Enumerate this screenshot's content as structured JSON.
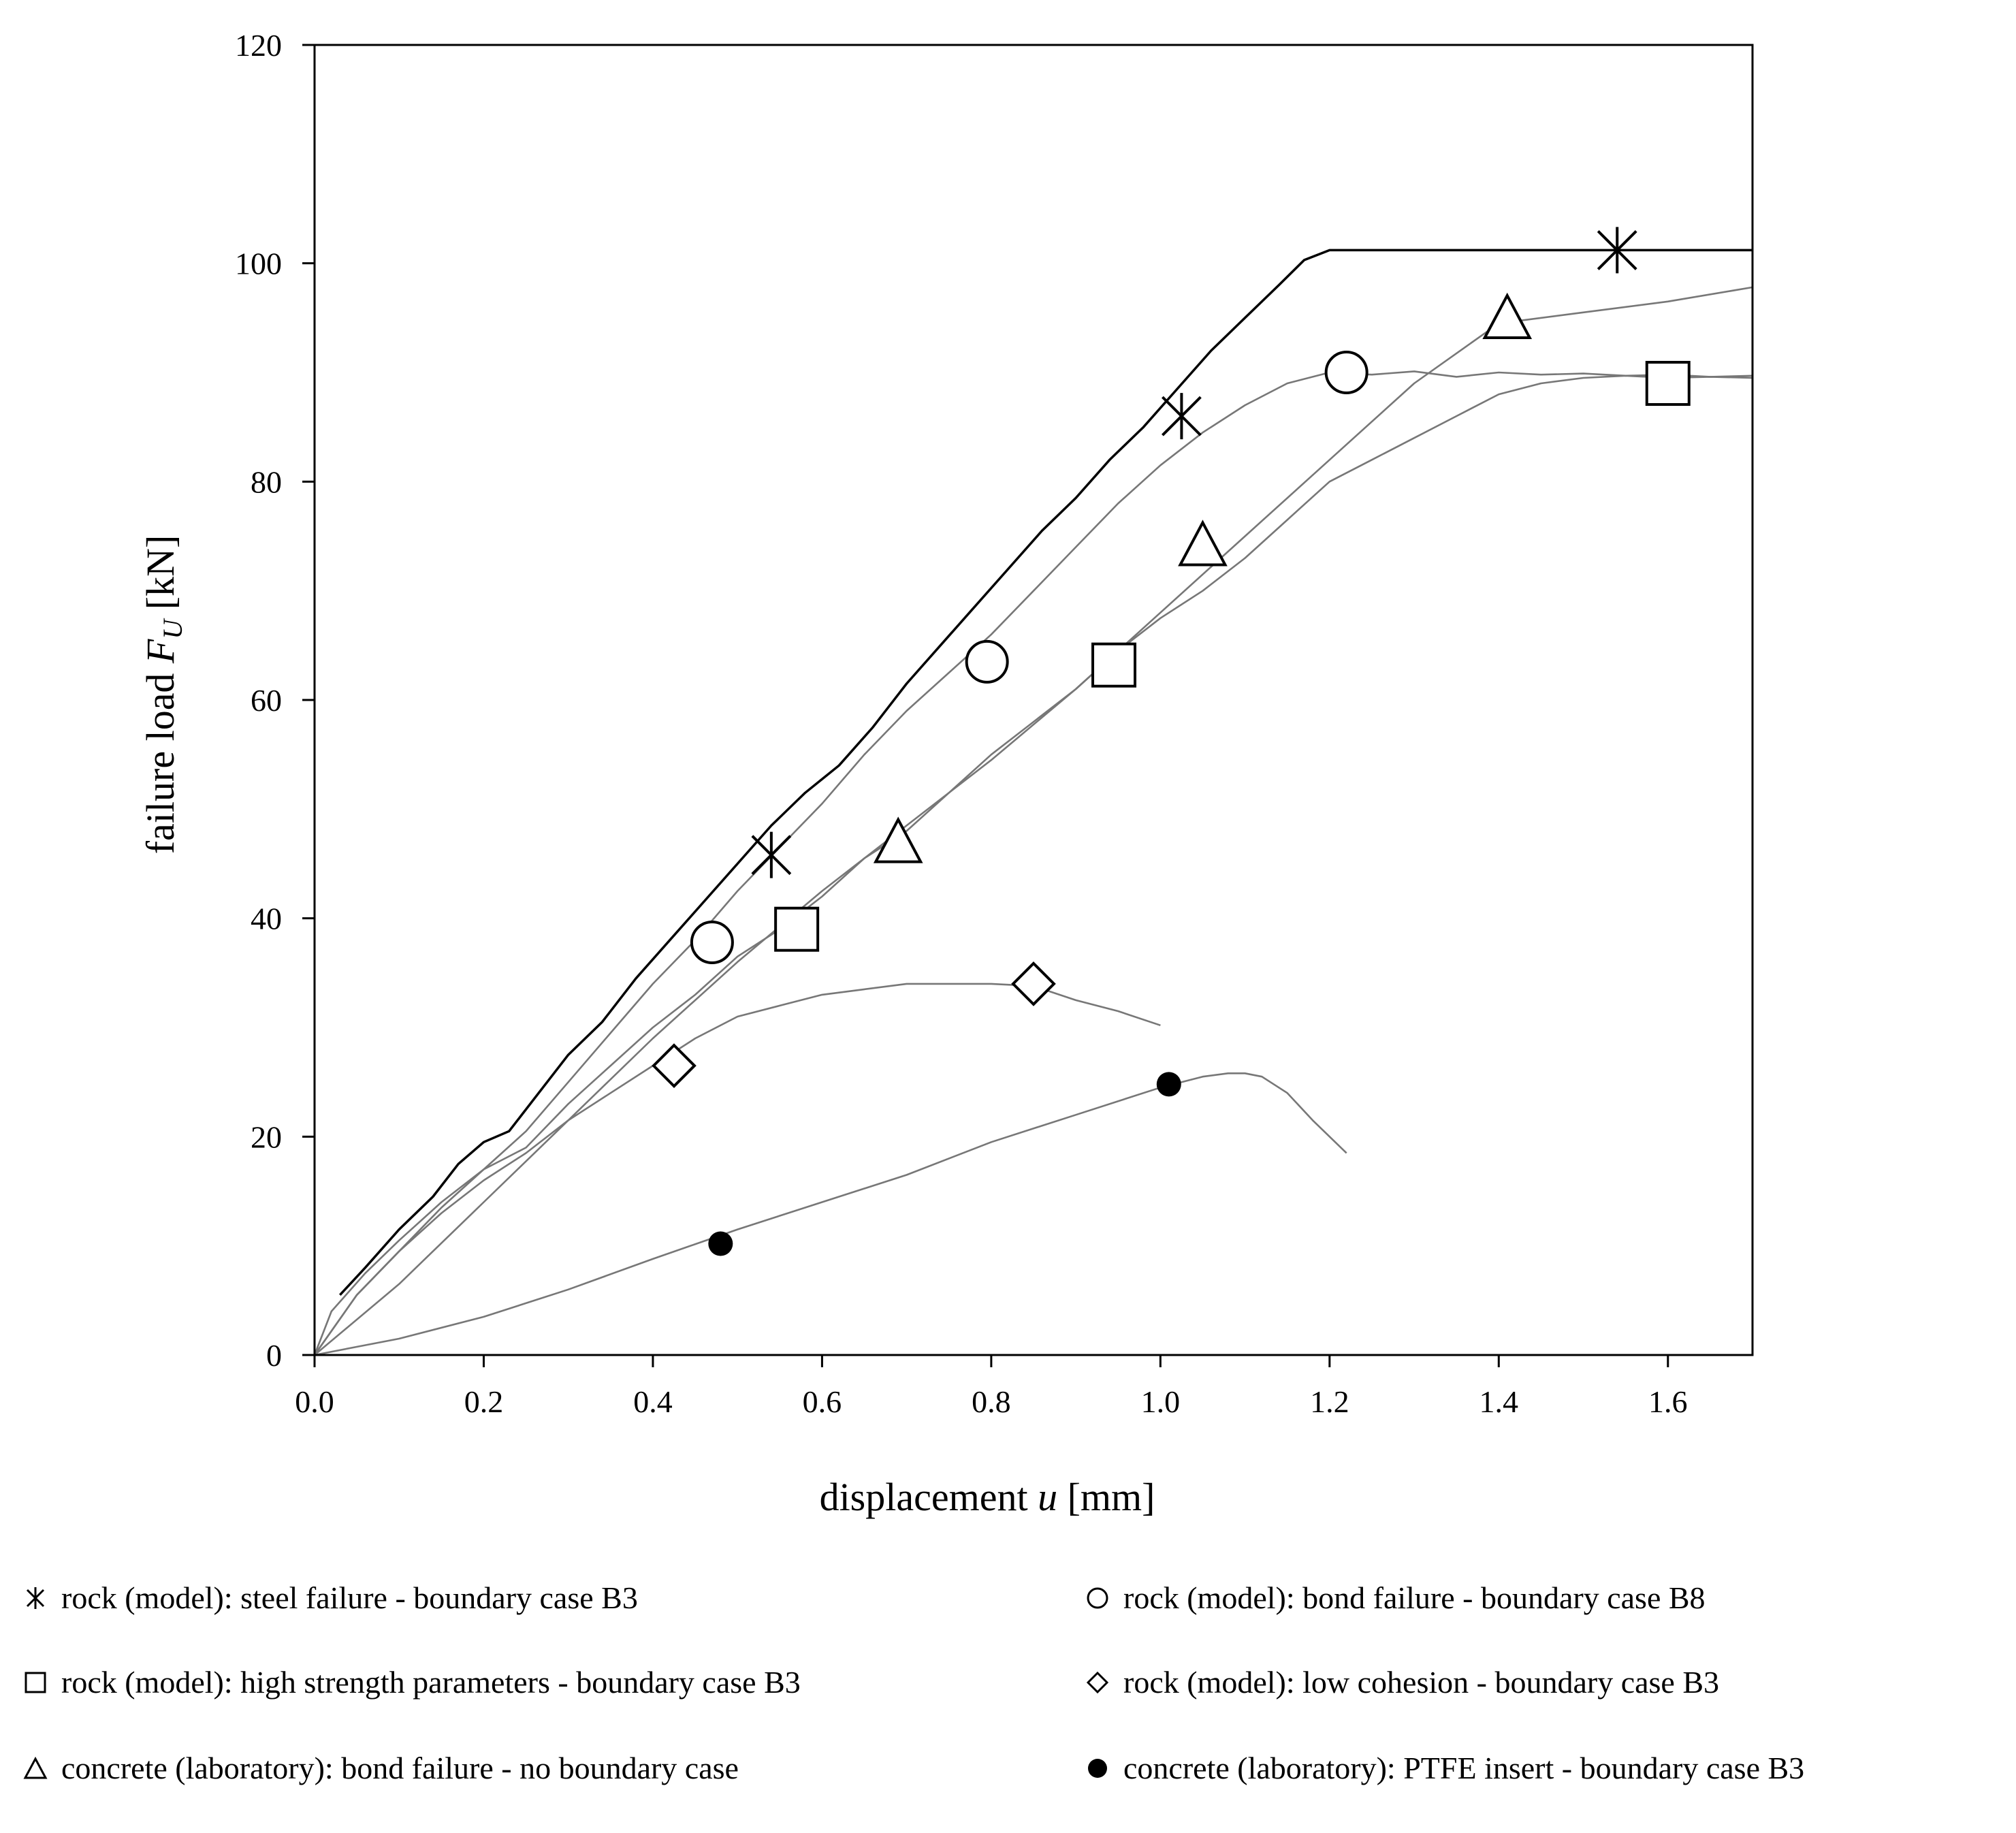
{
  "chart_data": {
    "type": "line",
    "title": "",
    "xlabel_text": "displacement",
    "xlabel_var": "u",
    "xlabel_unit": "[mm]",
    "ylabel_text": "failure load",
    "ylabel_var": "F",
    "ylabel_sub": "U",
    "ylabel_unit": "[kN]",
    "xlim": [
      0,
      1.7
    ],
    "ylim": [
      0,
      120
    ],
    "xticks": [
      0.0,
      0.2,
      0.4,
      0.6,
      0.8,
      1.0,
      1.2,
      1.4,
      1.6
    ],
    "xtick_labels": [
      "0.0",
      "0.2",
      "0.4",
      "0.6",
      "0.8",
      "1.0",
      "1.2",
      "1.4",
      "1.6"
    ],
    "yticks": [
      0,
      20,
      40,
      60,
      80,
      100,
      120
    ],
    "ytick_labels": [
      "0",
      "20",
      "40",
      "60",
      "80",
      "100",
      "120"
    ],
    "grid": false,
    "legend_position": "bottom",
    "series": [
      {
        "name": "rock (model): steel failure - boundary case B3",
        "marker": "asterisk",
        "color": "#000000",
        "x": [
          0.03,
          0.06,
          0.1,
          0.14,
          0.17,
          0.2,
          0.23,
          0.26,
          0.3,
          0.34,
          0.38,
          0.42,
          0.46,
          0.5,
          0.54,
          0.58,
          0.62,
          0.66,
          0.7,
          0.74,
          0.78,
          0.82,
          0.86,
          0.9,
          0.94,
          0.98,
          1.02,
          1.06,
          1.1,
          1.14,
          1.17,
          1.2,
          1.23,
          1.3,
          1.5,
          1.7
        ],
        "y": [
          5.5,
          8,
          11.5,
          14.5,
          17.5,
          19.5,
          20.5,
          23.5,
          27.5,
          30.5,
          34.5,
          38,
          41.5,
          45,
          48.5,
          51.5,
          54,
          57.5,
          61.5,
          65,
          68.5,
          72,
          75.5,
          78.5,
          82,
          85,
          88.5,
          92,
          95,
          98,
          100.3,
          101.2,
          101.2,
          101.2,
          101.2,
          101.2
        ],
        "markers_x": [
          0.54,
          1.025,
          1.54
        ],
        "markers_y": [
          45.8,
          86,
          101.2
        ]
      },
      {
        "name": "rock (model): bond failure  - boundary case B8",
        "marker": "circle",
        "color": "#777777",
        "x": [
          0,
          0.02,
          0.06,
          0.1,
          0.15,
          0.2,
          0.25,
          0.3,
          0.35,
          0.4,
          0.45,
          0.5,
          0.55,
          0.6,
          0.65,
          0.7,
          0.75,
          0.8,
          0.85,
          0.9,
          0.95,
          1.0,
          1.05,
          1.1,
          1.15,
          1.2,
          1.25,
          1.3,
          1.35,
          1.4,
          1.45,
          1.5,
          1.55,
          1.6,
          1.65,
          1.7
        ],
        "y": [
          0,
          4,
          7.5,
          10.5,
          14,
          17,
          20.5,
          25,
          29.5,
          34,
          38,
          42.5,
          46.5,
          50.5,
          55,
          59,
          62.5,
          66,
          70,
          74,
          78,
          81.5,
          84.5,
          87,
          89,
          90,
          89.8,
          90.1,
          89.6,
          90,
          89.8,
          89.9,
          89.7,
          89.8,
          89.6,
          89.7
        ],
        "markers_x": [
          0.47,
          0.795,
          1.22
        ],
        "markers_y": [
          37.8,
          63.5,
          90
        ]
      },
      {
        "name": "rock (model): high strength parameters  - boundary case B3",
        "marker": "square",
        "color": "#777777",
        "x": [
          0,
          0.05,
          0.1,
          0.15,
          0.2,
          0.25,
          0.3,
          0.35,
          0.4,
          0.45,
          0.5,
          0.55,
          0.6,
          0.65,
          0.7,
          0.75,
          0.8,
          0.85,
          0.9,
          0.95,
          1.0,
          1.05,
          1.1,
          1.15,
          1.2,
          1.25,
          1.3,
          1.35,
          1.4,
          1.45,
          1.5,
          1.55,
          1.6,
          1.65,
          1.7
        ],
        "y": [
          0,
          5.5,
          9.5,
          13.5,
          17,
          19,
          23,
          26.5,
          30,
          33,
          36.5,
          39,
          42,
          45.5,
          48,
          51.5,
          55,
          58,
          61,
          64.5,
          67.5,
          70,
          73,
          76.5,
          80,
          82,
          84,
          86,
          88,
          89,
          89.5,
          89.7,
          89.5,
          89.6,
          89.5
        ],
        "markers_x": [
          0.57,
          0.945,
          1.6
        ],
        "markers_y": [
          39,
          63.2,
          89
        ]
      },
      {
        "name": "rock (model): low cohesion  - boundary case B3",
        "marker": "diamond",
        "color": "#777777",
        "x": [
          0,
          0.05,
          0.1,
          0.15,
          0.2,
          0.25,
          0.3,
          0.35,
          0.4,
          0.45,
          0.5,
          0.55,
          0.6,
          0.65,
          0.7,
          0.75,
          0.8,
          0.85,
          0.9,
          0.95,
          1.0
        ],
        "y": [
          0,
          5.5,
          9.5,
          13,
          16,
          18.5,
          21.5,
          24,
          26.5,
          29,
          31,
          32,
          33,
          33.5,
          34,
          34,
          34,
          33.8,
          32.5,
          31.5,
          30.2
        ],
        "markers_x": [
          0.425,
          0.85
        ],
        "markers_y": [
          26.5,
          34
        ]
      },
      {
        "name": "concrete (laboratory): bond failure - no boundary case",
        "marker": "triangle",
        "color": "#777777",
        "x": [
          0,
          0.1,
          0.2,
          0.3,
          0.4,
          0.5,
          0.6,
          0.7,
          0.8,
          0.9,
          1.0,
          1.1,
          1.2,
          1.3,
          1.4,
          1.5,
          1.6,
          1.7
        ],
        "y": [
          0,
          6.5,
          14,
          21.5,
          29,
          36,
          42.5,
          48.5,
          54.5,
          61,
          68,
          75,
          82,
          89,
          94.5,
          95.5,
          96.5,
          97.8
        ],
        "markers_x": [
          0.69,
          1.05,
          1.41
        ],
        "markers_y": [
          46.8,
          74,
          94.8
        ]
      },
      {
        "name": "concrete (laboratory): PTFE insert - boundary case B3",
        "marker": "filled-circle",
        "color": "#777777",
        "x": [
          0,
          0.1,
          0.2,
          0.3,
          0.4,
          0.5,
          0.6,
          0.7,
          0.8,
          0.9,
          1.0,
          1.05,
          1.08,
          1.1,
          1.12,
          1.15,
          1.18,
          1.22
        ],
        "y": [
          0,
          1.5,
          3.5,
          6,
          8.8,
          11.5,
          14,
          16.5,
          19.5,
          22,
          24.5,
          25.5,
          25.8,
          25.8,
          25.5,
          24,
          21.5,
          18.5
        ],
        "markers_x": [
          0.48,
          1.01
        ],
        "markers_y": [
          10.2,
          24.8
        ]
      }
    ]
  }
}
